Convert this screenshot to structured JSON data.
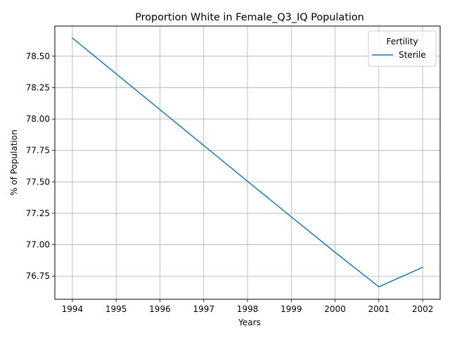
{
  "chart_data": {
    "type": "line",
    "title": "Proportion White in Female_Q3_IQ Population",
    "xlabel": "Years",
    "ylabel": "% of Population",
    "x": [
      1994,
      1995,
      1996,
      1997,
      1998,
      1999,
      2000,
      2001,
      2002
    ],
    "xticks": [
      "1994",
      "1995",
      "1996",
      "1997",
      "1998",
      "1999",
      "2000",
      "2001",
      "2002"
    ],
    "yticks": [
      "76.75",
      "77.00",
      "77.25",
      "77.50",
      "77.75",
      "78.00",
      "78.25",
      "78.50"
    ],
    "ytick_values": [
      76.75,
      77.0,
      77.25,
      77.5,
      77.75,
      78.0,
      78.25,
      78.5
    ],
    "xlim": [
      1993.6,
      2002.4
    ],
    "ylim": [
      76.566,
      78.74
    ],
    "grid": true,
    "legend": {
      "title": "Fertility",
      "placement": "top-right"
    },
    "series": [
      {
        "name": "Sterile",
        "color": "#1f77b4",
        "values": [
          78.645,
          78.36,
          78.075,
          77.79,
          77.505,
          77.222,
          76.94,
          76.665,
          76.82
        ]
      }
    ]
  }
}
